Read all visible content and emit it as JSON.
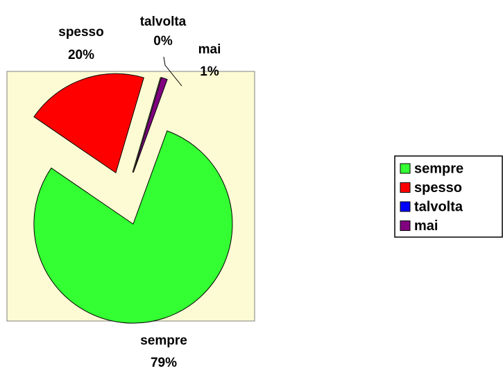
{
  "chart_data": {
    "type": "pie",
    "categories": [
      "sempre",
      "spesso",
      "talvolta",
      "mai"
    ],
    "values": [
      79,
      20,
      0,
      1
    ],
    "value_labels": [
      "79%",
      "20%",
      "0%",
      "1%"
    ],
    "colors": [
      "#33ff33",
      "#ff0000",
      "#0000ff",
      "#800080"
    ],
    "legend": "right"
  }
}
